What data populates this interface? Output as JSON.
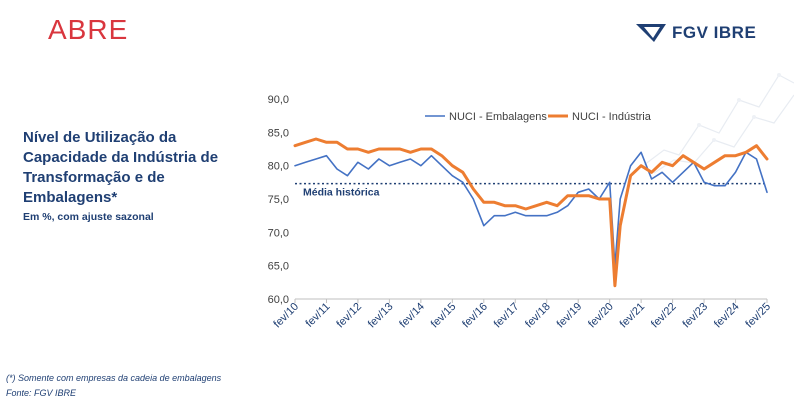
{
  "logos": {
    "abre": "ABRE",
    "fgv": "FGV IBRE"
  },
  "title": "Nível de Utilização da Capacidade da Indústria de Transformação e de Embalagens*",
  "subtitle": "Em %, com ajuste sazonal",
  "footnote": "(*) Somente com empresas da cadeia de embalagens",
  "source": "Fonte: FGV IBRE",
  "colors": {
    "embalagens": "#4472c4",
    "industria": "#ed7d31",
    "media": "#1f3f73",
    "text": "#1f3f73",
    "brand_red": "#d9363e"
  },
  "chart_data": {
    "type": "line",
    "x": [
      "2010-02",
      "2010-06",
      "2010-10",
      "2011-02",
      "2011-06",
      "2011-10",
      "2012-02",
      "2012-06",
      "2012-10",
      "2013-02",
      "2013-06",
      "2013-10",
      "2014-02",
      "2014-06",
      "2014-10",
      "2015-02",
      "2015-06",
      "2015-10",
      "2016-02",
      "2016-06",
      "2016-10",
      "2017-02",
      "2017-06",
      "2017-10",
      "2018-02",
      "2018-06",
      "2018-10",
      "2019-02",
      "2019-06",
      "2019-10",
      "2020-02",
      "2020-04",
      "2020-06",
      "2020-10",
      "2021-02",
      "2021-06",
      "2021-10",
      "2022-02",
      "2022-06",
      "2022-10",
      "2023-02",
      "2023-06",
      "2023-10",
      "2024-02",
      "2024-06",
      "2024-10",
      "2025-02"
    ],
    "series": [
      {
        "name": "NUCI - Embalagens",
        "color": "#4472c4",
        "values": [
          80.0,
          80.5,
          81.0,
          81.5,
          79.5,
          78.5,
          80.5,
          79.5,
          81.0,
          80.0,
          80.5,
          81.0,
          80.0,
          81.5,
          80.0,
          78.5,
          77.5,
          75.0,
          71.0,
          72.5,
          72.5,
          73.0,
          72.5,
          72.5,
          72.5,
          73.0,
          74.0,
          76.0,
          76.5,
          75.0,
          77.5,
          65.0,
          75.0,
          80.0,
          82.0,
          78.0,
          79.0,
          77.5,
          79.0,
          80.5,
          77.5,
          77.0,
          77.0,
          79.0,
          82.0,
          81.0,
          76.0
        ]
      },
      {
        "name": "NUCI - Indústria",
        "color": "#ed7d31",
        "values": [
          83.0,
          83.5,
          84.0,
          83.5,
          83.5,
          82.5,
          82.5,
          82.0,
          82.5,
          82.5,
          82.5,
          82.0,
          82.5,
          82.5,
          81.5,
          80.0,
          79.0,
          76.5,
          74.5,
          74.5,
          74.0,
          74.0,
          73.5,
          74.0,
          74.5,
          74.0,
          75.5,
          75.5,
          75.5,
          75.0,
          75.0,
          62.0,
          71.0,
          78.5,
          80.0,
          79.0,
          80.5,
          80.0,
          81.5,
          80.5,
          79.5,
          80.5,
          81.5,
          81.5,
          82.0,
          83.0,
          81.0
        ]
      }
    ],
    "reference_line": {
      "label": "Média histórica",
      "value": 77.3
    },
    "x_tick_labels": [
      "fev/10",
      "fev/11",
      "fev/12",
      "fev/13",
      "fev/14",
      "fev/15",
      "fev/16",
      "fev/17",
      "fev/18",
      "fev/19",
      "fev/20",
      "fev/21",
      "fev/22",
      "fev/23",
      "fev/24",
      "fev/25"
    ],
    "y_ticks": [
      "60,0",
      "65,0",
      "70,0",
      "75,0",
      "80,0",
      "85,0",
      "90,0"
    ],
    "ylim": [
      60,
      90
    ],
    "xlim": [
      "2010-02",
      "2025-02"
    ],
    "grid": false,
    "legend_position": "top"
  }
}
